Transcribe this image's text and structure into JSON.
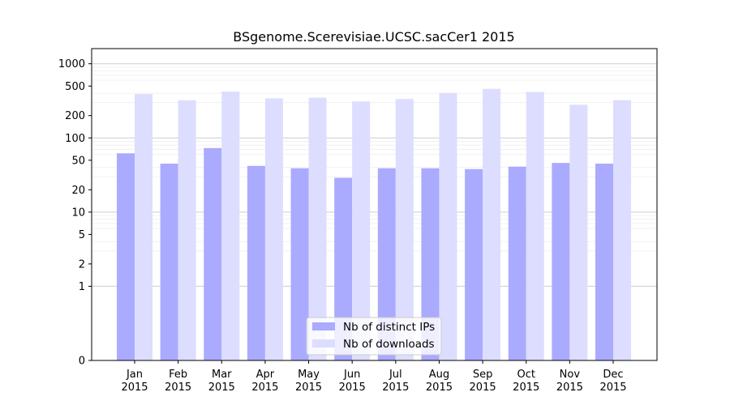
{
  "chart_data": {
    "type": "bar",
    "title": "BSgenome.Scerevisiae.UCSC.sacCer1 2015",
    "xlabel": "",
    "ylabel": "",
    "scale": "symlog",
    "categories": [
      [
        "Jan",
        "2015"
      ],
      [
        "Feb",
        "2015"
      ],
      [
        "Mar",
        "2015"
      ],
      [
        "Apr",
        "2015"
      ],
      [
        "May",
        "2015"
      ],
      [
        "Jun",
        "2015"
      ],
      [
        "Jul",
        "2015"
      ],
      [
        "Aug",
        "2015"
      ],
      [
        "Sep",
        "2015"
      ],
      [
        "Oct",
        "2015"
      ],
      [
        "Nov",
        "2015"
      ],
      [
        "Dec",
        "2015"
      ]
    ],
    "series": [
      {
        "name": "Nb of distinct IPs",
        "color": "#aaaaff",
        "values": [
          62,
          45,
          73,
          42,
          39,
          29,
          39,
          39,
          38,
          41,
          46,
          45
        ]
      },
      {
        "name": "Nb of downloads",
        "color": "#ddddff",
        "values": [
          390,
          322,
          421,
          342,
          349,
          310,
          335,
          403,
          459,
          416,
          280,
          323
        ]
      }
    ],
    "yticks": [
      0,
      1,
      2,
      5,
      10,
      20,
      50,
      100,
      200,
      500,
      1000
    ],
    "ylim": [
      0,
      1600
    ],
    "grid": true,
    "legend_position": "bottom-center"
  }
}
